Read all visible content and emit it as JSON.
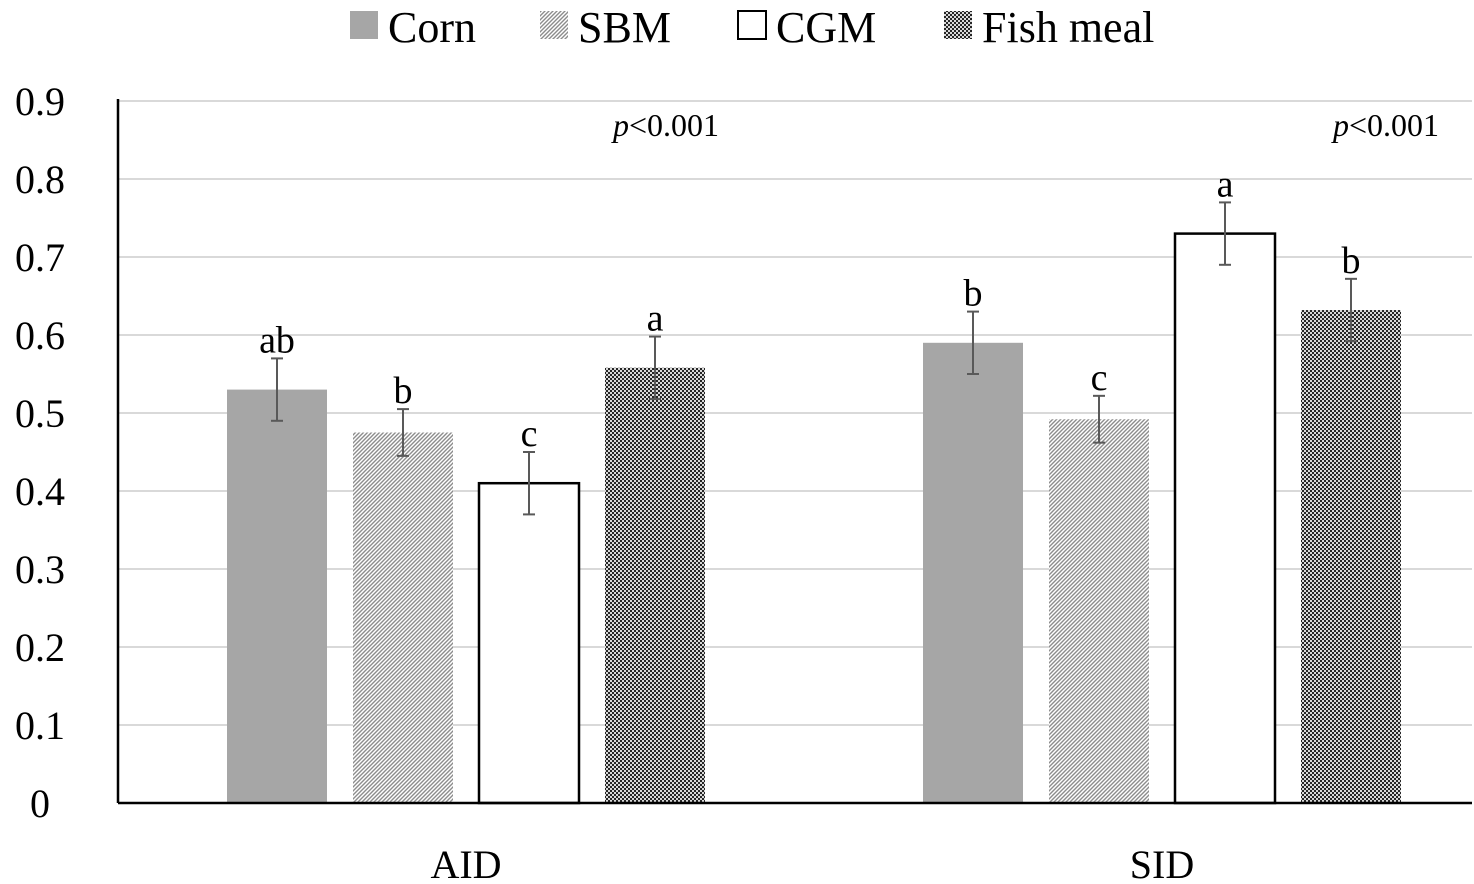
{
  "chart_data": {
    "type": "bar",
    "categories": [
      "AID",
      "SID"
    ],
    "series": [
      {
        "name": "Corn",
        "values": [
          0.53,
          0.59
        ],
        "errors": [
          0.04,
          0.04
        ],
        "letters": [
          "ab",
          "b"
        ],
        "color": "#a6a6a6",
        "fill": "solid"
      },
      {
        "name": "SBM",
        "values": [
          0.475,
          0.492
        ],
        "errors": [
          0.03,
          0.03
        ],
        "letters": [
          "b",
          "c"
        ],
        "color": "#bfbfbf",
        "fill": "hatch"
      },
      {
        "name": "CGM",
        "values": [
          0.41,
          0.73
        ],
        "errors": [
          0.04,
          0.04
        ],
        "letters": [
          "c",
          "a"
        ],
        "color": "#ffffff",
        "fill": "outline"
      },
      {
        "name": "Fish meal",
        "values": [
          0.558,
          0.632
        ],
        "errors": [
          0.04,
          0.04
        ],
        "letters": [
          "a",
          "b"
        ],
        "color": "#595959",
        "fill": "checker"
      }
    ],
    "annotations": [
      {
        "category": "AID",
        "p_italic": "p",
        "p_rest": "<0.001"
      },
      {
        "category": "SID",
        "p_italic": "p",
        "p_rest": "<0.001"
      }
    ],
    "ylim": [
      0,
      0.9
    ],
    "yticks": [
      "0",
      "0.1",
      "0.2",
      "0.3",
      "0.4",
      "0.5",
      "0.6",
      "0.7",
      "0.8",
      "0.9"
    ],
    "title": "",
    "xlabel": "",
    "ylabel": "",
    "grid": true,
    "legend_position": "top-center"
  }
}
